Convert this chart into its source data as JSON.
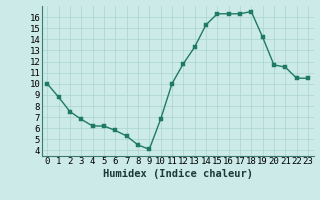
{
  "x": [
    0,
    1,
    2,
    3,
    4,
    5,
    6,
    7,
    8,
    9,
    10,
    11,
    12,
    13,
    14,
    15,
    16,
    17,
    18,
    19,
    20,
    21,
    22,
    23
  ],
  "y": [
    10,
    8.8,
    7.5,
    6.8,
    6.2,
    6.2,
    5.8,
    5.3,
    4.5,
    4.1,
    6.8,
    10.0,
    11.8,
    13.3,
    15.3,
    16.3,
    16.3,
    16.3,
    16.5,
    14.2,
    11.7,
    11.5,
    10.5,
    10.5
  ],
  "xlabel": "Humidex (Indice chaleur)",
  "xlim": [
    -0.5,
    23.5
  ],
  "ylim": [
    3.5,
    17.0
  ],
  "line_color": "#1e7a65",
  "marker_color": "#1e7a65",
  "bg_color": "#cceae7",
  "grid_color": "#aad4d0",
  "yticks": [
    4,
    5,
    6,
    7,
    8,
    9,
    10,
    11,
    12,
    13,
    14,
    15,
    16
  ],
  "xticks": [
    0,
    1,
    2,
    3,
    4,
    5,
    6,
    7,
    8,
    9,
    10,
    11,
    12,
    13,
    14,
    15,
    16,
    17,
    18,
    19,
    20,
    21,
    22,
    23
  ],
  "xlabel_fontsize": 7.5,
  "tick_fontsize": 6.5,
  "marker_size": 2.5,
  "linewidth": 1.0
}
